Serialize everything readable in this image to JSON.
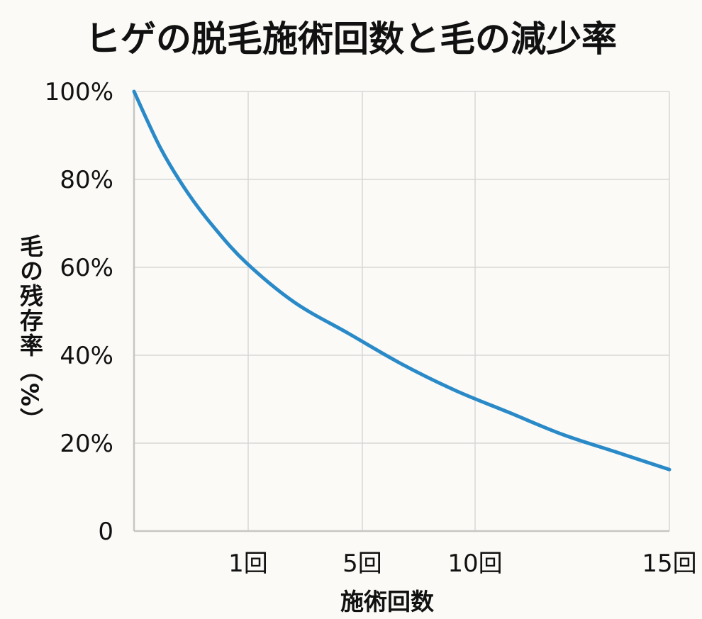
{
  "chart_data": {
    "type": "line",
    "title": "ヒゲの脱毛施術回数と毛の減少率",
    "xlabel": "施術回数",
    "ylabel": "毛の残存率（%）",
    "x_ticks": [
      "1回",
      "5回",
      "10回",
      "15回"
    ],
    "y_ticks": [
      "0",
      "20%",
      "40%",
      "60%",
      "80%",
      "100%"
    ],
    "y_tick_values": [
      0,
      20,
      40,
      60,
      80,
      100
    ],
    "ylim": [
      0,
      100
    ],
    "grid": true,
    "series": [
      {
        "x_fraction": [
          0,
          0.05,
          0.1,
          0.15,
          0.21,
          0.3,
          0.4,
          0.5,
          0.6,
          0.7,
          0.8,
          0.9,
          1.0
        ],
        "values": [
          100,
          87,
          77,
          69,
          61,
          52,
          45,
          38,
          32,
          27,
          22,
          18,
          14
        ],
        "color": "#2a8ac8"
      }
    ]
  }
}
